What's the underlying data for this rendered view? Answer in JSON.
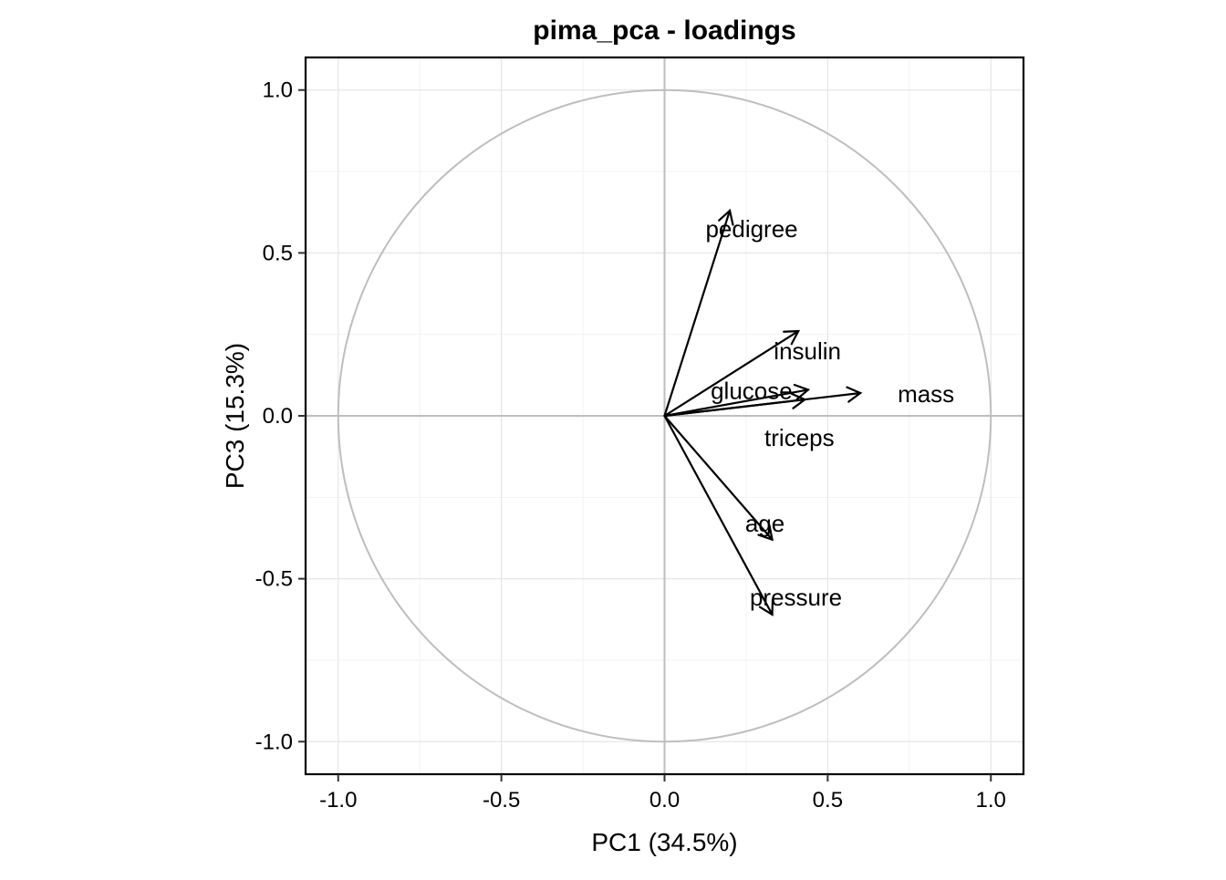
{
  "chart_data": {
    "type": "scatter",
    "title": "pima_pca - loadings",
    "xlabel": "PC1 (34.5%)",
    "ylabel": "PC3 (15.3%)",
    "xlim": [
      -1.1,
      1.1
    ],
    "ylim": [
      -1.1,
      1.1
    ],
    "x_ticks": [
      -1.0,
      -0.5,
      0.0,
      0.5,
      1.0
    ],
    "y_ticks": [
      -1.0,
      -0.5,
      0.0,
      0.5,
      1.0
    ],
    "x_tick_labels": [
      "-1.0",
      "-0.5",
      "0.0",
      "0.5",
      "1.0"
    ],
    "y_tick_labels": [
      "-1.0",
      "-0.5",
      "0.0",
      "0.5",
      "1.0"
    ],
    "grid": true,
    "unit_circle": true,
    "loadings": [
      {
        "name": "pedigree",
        "x": 0.2,
        "y": 0.63
      },
      {
        "name": "insulin",
        "x": 0.41,
        "y": 0.26
      },
      {
        "name": "mass",
        "x": 0.6,
        "y": 0.07
      },
      {
        "name": "glucose",
        "x": 0.44,
        "y": 0.08
      },
      {
        "name": "triceps",
        "x": 0.43,
        "y": 0.05
      },
      {
        "name": "age",
        "x": 0.33,
        "y": -0.38
      },
      {
        "name": "pressure",
        "x": 0.33,
        "y": -0.61
      }
    ]
  }
}
